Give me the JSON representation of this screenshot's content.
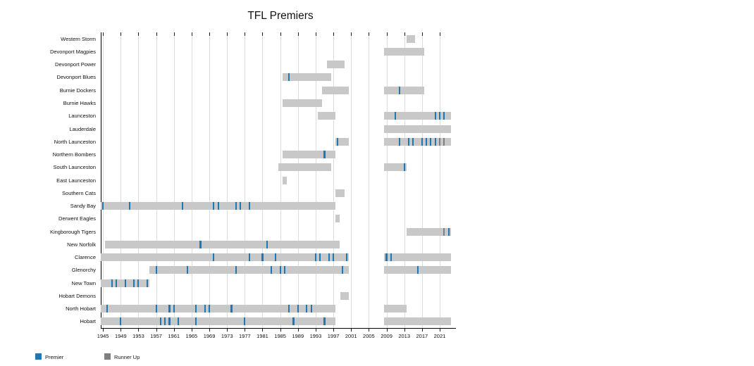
{
  "title": "TFL Premiers",
  "legend": {
    "premier_label": "Premier",
    "runner_up_label": "Runner Up"
  },
  "colors": {
    "premier_blue": "#1f77b4",
    "runner_up_gray": "#7f7f7f",
    "span_bar_gray": "#c8c8c8",
    "gridline": "#dcdcdc",
    "axis": "#000000"
  },
  "chart_data": {
    "type": "bar",
    "subtype": "gantt-timeline",
    "title": "TFL Premiers",
    "xlabel": "",
    "ylabel": "",
    "grid": "vertical",
    "legend_position": "bottom-left",
    "x_axis": {
      "tick_years": [
        1945,
        1949,
        1953,
        1957,
        1961,
        1965,
        1969,
        1973,
        1977,
        1981,
        1985,
        1989,
        1993,
        1997,
        2001,
        2005,
        2009,
        2013,
        2017,
        2021
      ],
      "range": [
        1944.5,
        2024.5
      ]
    },
    "series_legend": [
      {
        "name": "Premier",
        "color": "#1f77b4"
      },
      {
        "name": "Runner Up",
        "color": "#7f7f7f"
      }
    ],
    "teams": [
      {
        "name": "Western Storm",
        "spans": [
          [
            2014,
            2015
          ]
        ],
        "premier_years": [],
        "runner_up_years": []
      },
      {
        "name": "Devonport Magpies",
        "spans": [
          [
            2009,
            2017
          ]
        ],
        "premier_years": [],
        "runner_up_years": []
      },
      {
        "name": "Devonport Power",
        "spans": [
          [
            1996,
            1999
          ]
        ],
        "premier_years": [],
        "runner_up_years": []
      },
      {
        "name": "Devonport Blues",
        "spans": [
          [
            1986,
            1996
          ]
        ],
        "premier_years": [
          1987
        ],
        "runner_up_years": []
      },
      {
        "name": "Burnie Dockers",
        "spans": [
          [
            1995,
            2000
          ],
          [
            2009,
            2017
          ]
        ],
        "premier_years": [
          2012
        ],
        "runner_up_years": []
      },
      {
        "name": "Burnie Hawks",
        "spans": [
          [
            1986,
            1994
          ]
        ],
        "premier_years": [],
        "runner_up_years": []
      },
      {
        "name": "Launceston",
        "spans": [
          [
            1994,
            1997
          ],
          [
            2009,
            2023
          ]
        ],
        "premier_years": [
          2011,
          2020,
          2021,
          2022
        ],
        "runner_up_years": []
      },
      {
        "name": "Lauderdale",
        "spans": [
          [
            2009,
            2023
          ]
        ],
        "premier_years": [],
        "runner_up_years": []
      },
      {
        "name": "North Launceston",
        "spans": [
          [
            1998,
            2000
          ],
          [
            2009,
            2023
          ]
        ],
        "premier_years": [
          1998,
          2012,
          2014,
          2015,
          2017,
          2018,
          2019,
          2020
        ],
        "runner_up_years": [
          2021,
          2022
        ]
      },
      {
        "name": "Northern Bombers",
        "spans": [
          [
            1986,
            1997
          ]
        ],
        "premier_years": [
          1995
        ],
        "runner_up_years": []
      },
      {
        "name": "South Launceston",
        "spans": [
          [
            1985,
            1996
          ],
          [
            2009,
            2013
          ]
        ],
        "premier_years": [
          2013
        ],
        "runner_up_years": []
      },
      {
        "name": "East Launceston",
        "spans": [
          [
            1986,
            1986
          ]
        ],
        "premier_years": [],
        "runner_up_years": []
      },
      {
        "name": "Southern Cats",
        "spans": [
          [
            1998,
            1999
          ]
        ],
        "premier_years": [],
        "runner_up_years": []
      },
      {
        "name": "Sandy Bay",
        "spans": [
          [
            1945,
            1997
          ]
        ],
        "premier_years": [
          1945,
          1951,
          1963,
          1970,
          1971,
          1975,
          1976,
          1978
        ],
        "runner_up_years": []
      },
      {
        "name": "Derwent Eagles",
        "spans": [
          [
            1998,
            1998
          ]
        ],
        "premier_years": [],
        "runner_up_years": []
      },
      {
        "name": "Kingborough Tigers",
        "spans": [
          [
            2014,
            2023
          ]
        ],
        "premier_years": [
          2023
        ],
        "runner_up_years": [
          2022
        ]
      },
      {
        "name": "New Norfolk",
        "spans": [
          [
            1946,
            1998
          ]
        ],
        "premier_years": [
          1967,
          1982
        ],
        "runner_up_years": []
      },
      {
        "name": "Clarence",
        "spans": [
          [
            1945,
            2000
          ],
          [
            2009,
            2023
          ]
        ],
        "premier_years": [
          1970,
          1978,
          1981,
          1984,
          1993,
          1994,
          1996,
          1997,
          2000,
          2009,
          2010
        ],
        "runner_up_years": []
      },
      {
        "name": "Glenorchy",
        "spans": [
          [
            1956,
            2000
          ],
          [
            2009,
            2023
          ]
        ],
        "premier_years": [
          1957,
          1964,
          1975,
          1983,
          1985,
          1986,
          1999,
          2016
        ],
        "runner_up_years": []
      },
      {
        "name": "New Town",
        "spans": [
          [
            1945,
            1955
          ]
        ],
        "premier_years": [
          1947,
          1948,
          1950,
          1952,
          1953,
          1955
        ],
        "runner_up_years": []
      },
      {
        "name": "Hobart Demons",
        "spans": [
          [
            1999,
            2000
          ]
        ],
        "premier_years": [],
        "runner_up_years": []
      },
      {
        "name": "North Hobart",
        "spans": [
          [
            1945,
            1997
          ],
          [
            2009,
            2013
          ]
        ],
        "premier_years": [
          1946,
          1957,
          1960,
          1961,
          1966,
          1968,
          1969,
          1974,
          1987,
          1989,
          1991,
          1992
        ],
        "runner_up_years": []
      },
      {
        "name": "Hobart",
        "spans": [
          [
            1945,
            1997
          ],
          [
            2009,
            2023
          ]
        ],
        "premier_years": [
          1949,
          1958,
          1959,
          1960,
          1962,
          1966,
          1977,
          1988,
          1995
        ],
        "runner_up_years": []
      }
    ]
  }
}
